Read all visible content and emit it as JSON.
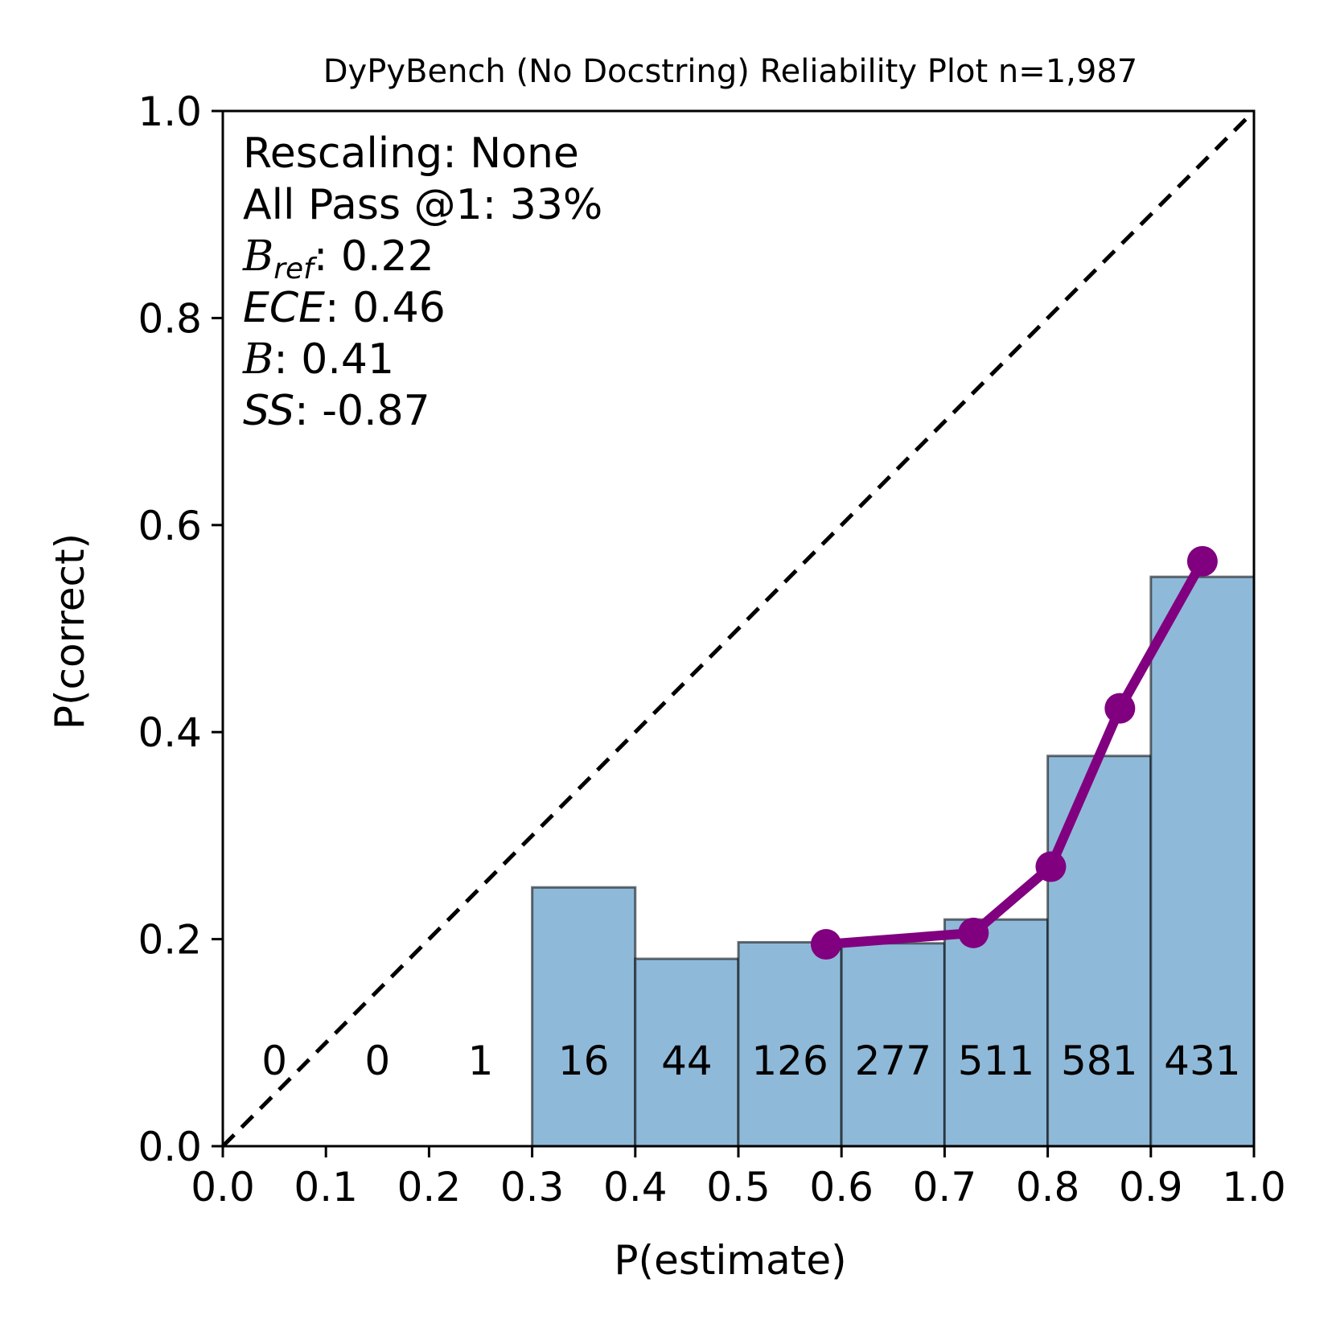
{
  "chart_data": {
    "type": "bar",
    "title": "DyPyBench (No Docstring) Reliability Plot n=1,987",
    "xlabel": "P(estimate)",
    "ylabel": "P(correct)",
    "xlim": [
      0.0,
      1.0
    ],
    "ylim": [
      0.0,
      1.0
    ],
    "xticks": [
      "0.0",
      "0.1",
      "0.2",
      "0.3",
      "0.4",
      "0.5",
      "0.6",
      "0.7",
      "0.8",
      "0.9",
      "1.0"
    ],
    "yticks": [
      "0.0",
      "0.2",
      "0.4",
      "0.6",
      "0.8",
      "1.0"
    ],
    "grid": false,
    "bins": {
      "edges": [
        0.0,
        0.1,
        0.2,
        0.3,
        0.4,
        0.5,
        0.6,
        0.7,
        0.8,
        0.9,
        1.0
      ],
      "values": [
        0.0,
        0.0,
        0.0,
        0.25,
        0.181,
        0.197,
        0.196,
        0.219,
        0.377,
        0.55
      ],
      "counts": [
        "0",
        "0",
        "1",
        "16",
        "44",
        "126",
        "277",
        "511",
        "581",
        "431"
      ],
      "color": "#8fb9d8"
    },
    "line": {
      "color": "#800080",
      "x": [
        0.585,
        0.728,
        0.803,
        0.87,
        0.95
      ],
      "y": [
        0.195,
        0.206,
        0.27,
        0.423,
        0.565
      ]
    },
    "diagonal": {
      "x": [
        0,
        1
      ],
      "y": [
        0,
        1
      ],
      "style": "dashed",
      "color": "#000000"
    },
    "annotations": {
      "rescaling": "Rescaling: None",
      "all_pass": "All Pass @1: 33%",
      "bref_sym": "B",
      "bref_sub": "ref",
      "bref_val": ": 0.22",
      "ece_sym": "ECE",
      "ece_val": ": 0.46",
      "b_sym": "B",
      "b_val": ": 0.41",
      "ss_sym": "SS",
      "ss_val": ": -0.87"
    }
  }
}
